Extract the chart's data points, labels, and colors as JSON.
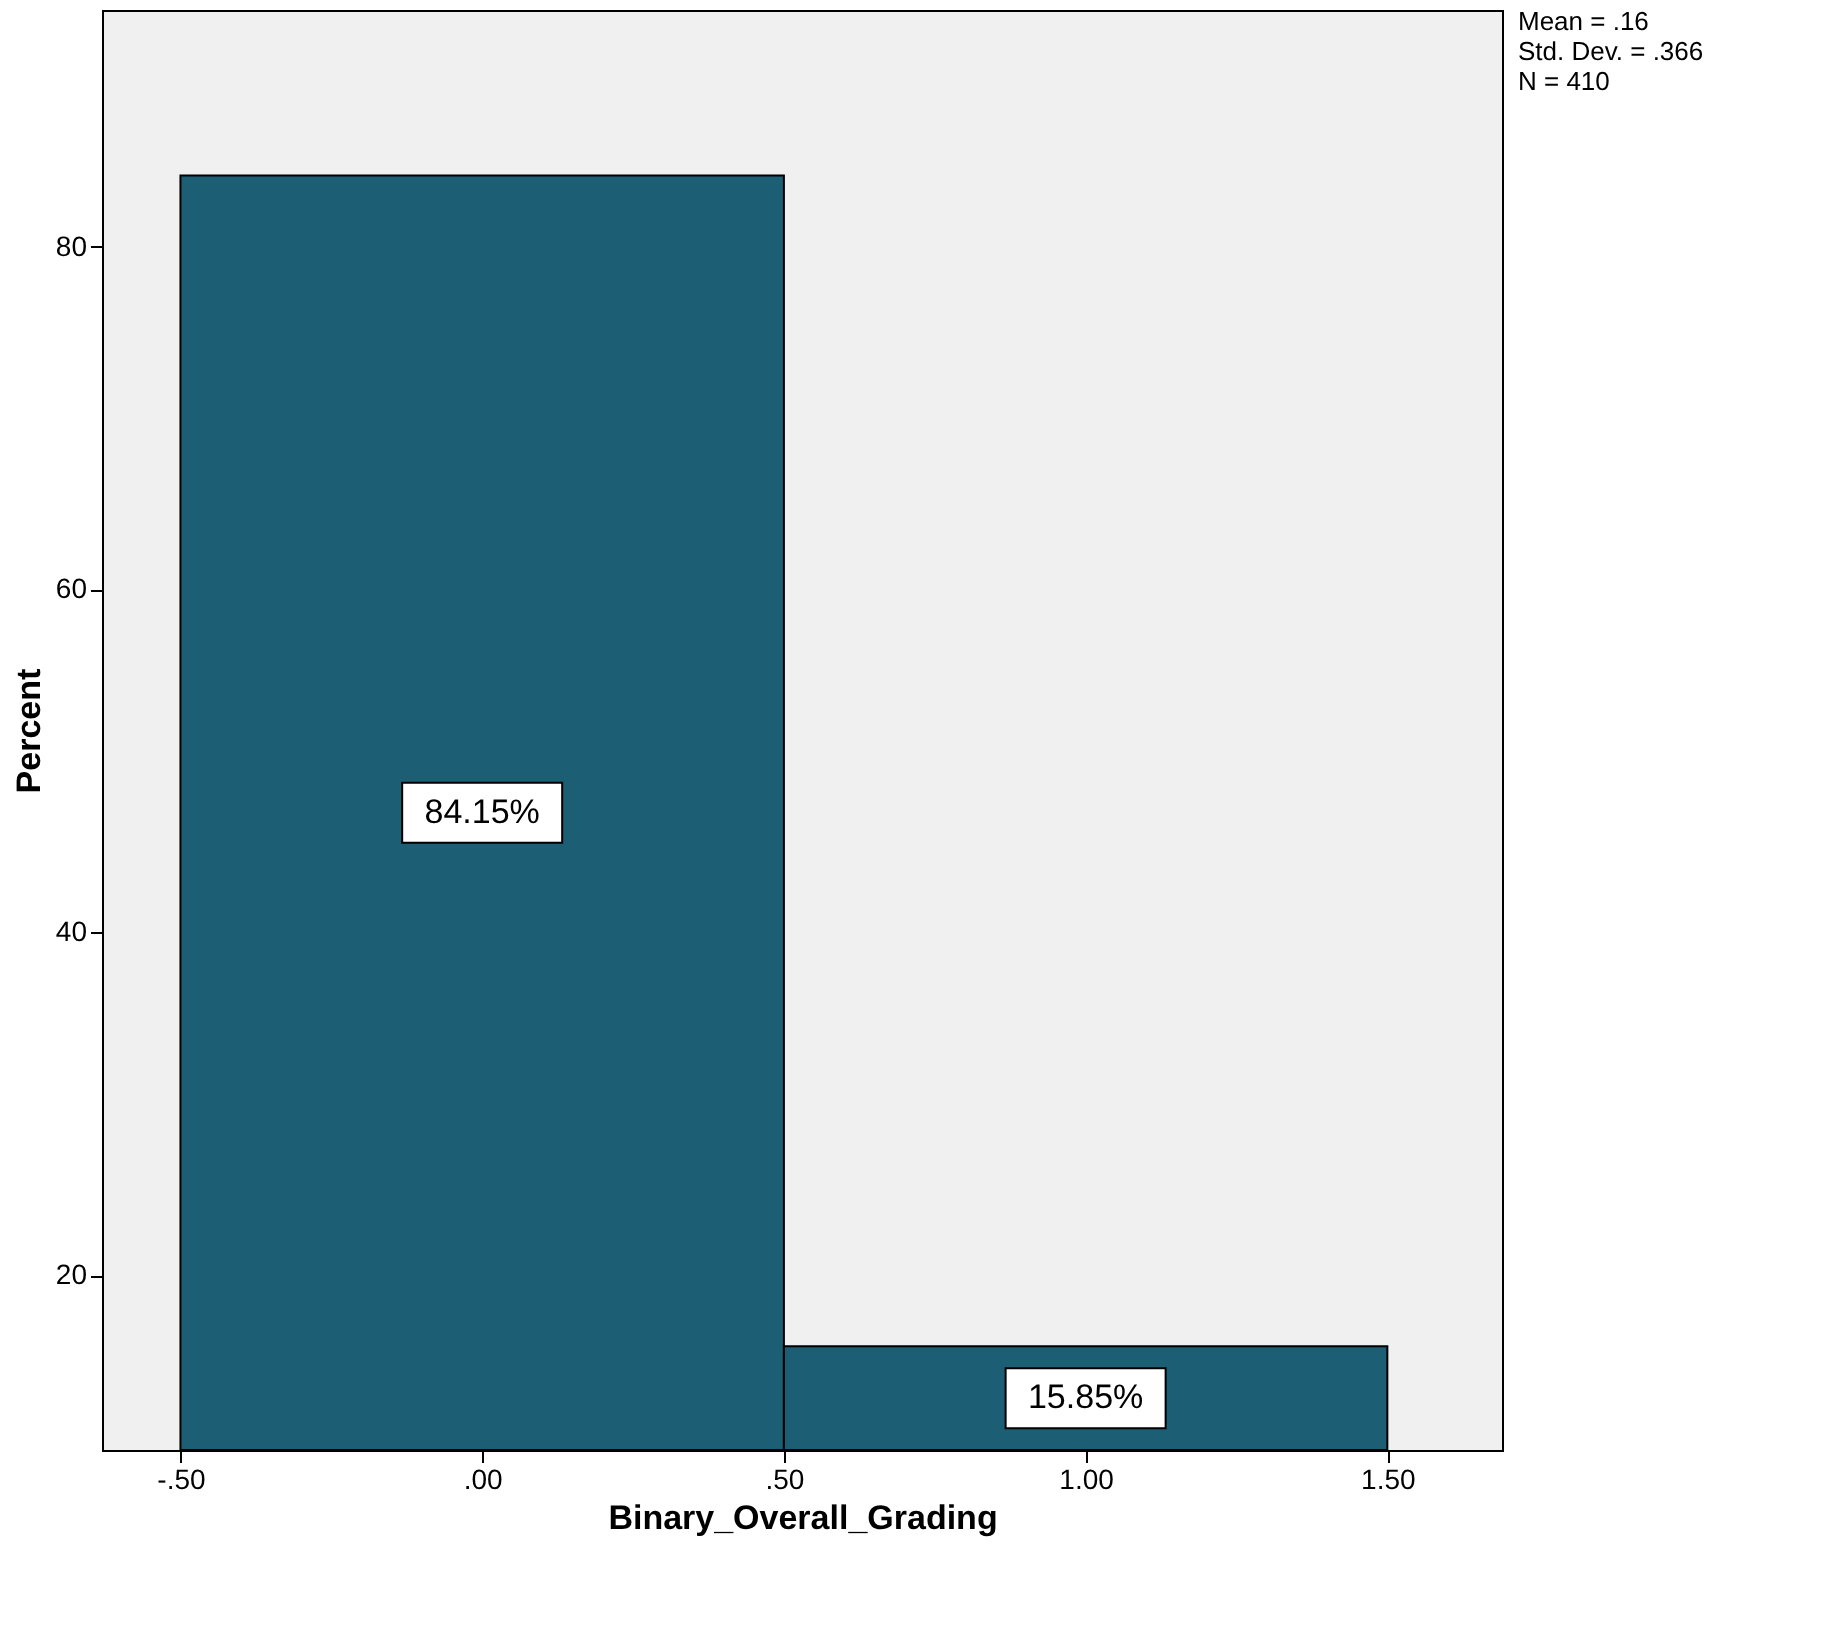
{
  "chart_data": {
    "type": "histogram",
    "xlabel": "Binary_Overall_Grading",
    "ylabel": "Percent",
    "bins": [
      -0.5,
      0.5,
      1.5
    ],
    "values": [
      84.15,
      15.85
    ],
    "value_labels": [
      "84.15%",
      "15.85%"
    ],
    "color": "#1c5e74",
    "xlim": [
      -0.63,
      1.69
    ],
    "ylim": [
      9.8,
      93.8
    ],
    "xticks": [
      {
        "value": -0.5,
        "label": "-.50"
      },
      {
        "value": 0,
        "label": ".00"
      },
      {
        "value": 0.5,
        "label": ".50"
      },
      {
        "value": 1,
        "label": "1.00"
      },
      {
        "value": 1.5,
        "label": "1.50"
      }
    ],
    "yticks": [
      20,
      40,
      60,
      80
    ],
    "grid": false,
    "annotations": [
      "Mean = .16",
      "Std. Dev. = .366",
      "N = 410"
    ]
  }
}
